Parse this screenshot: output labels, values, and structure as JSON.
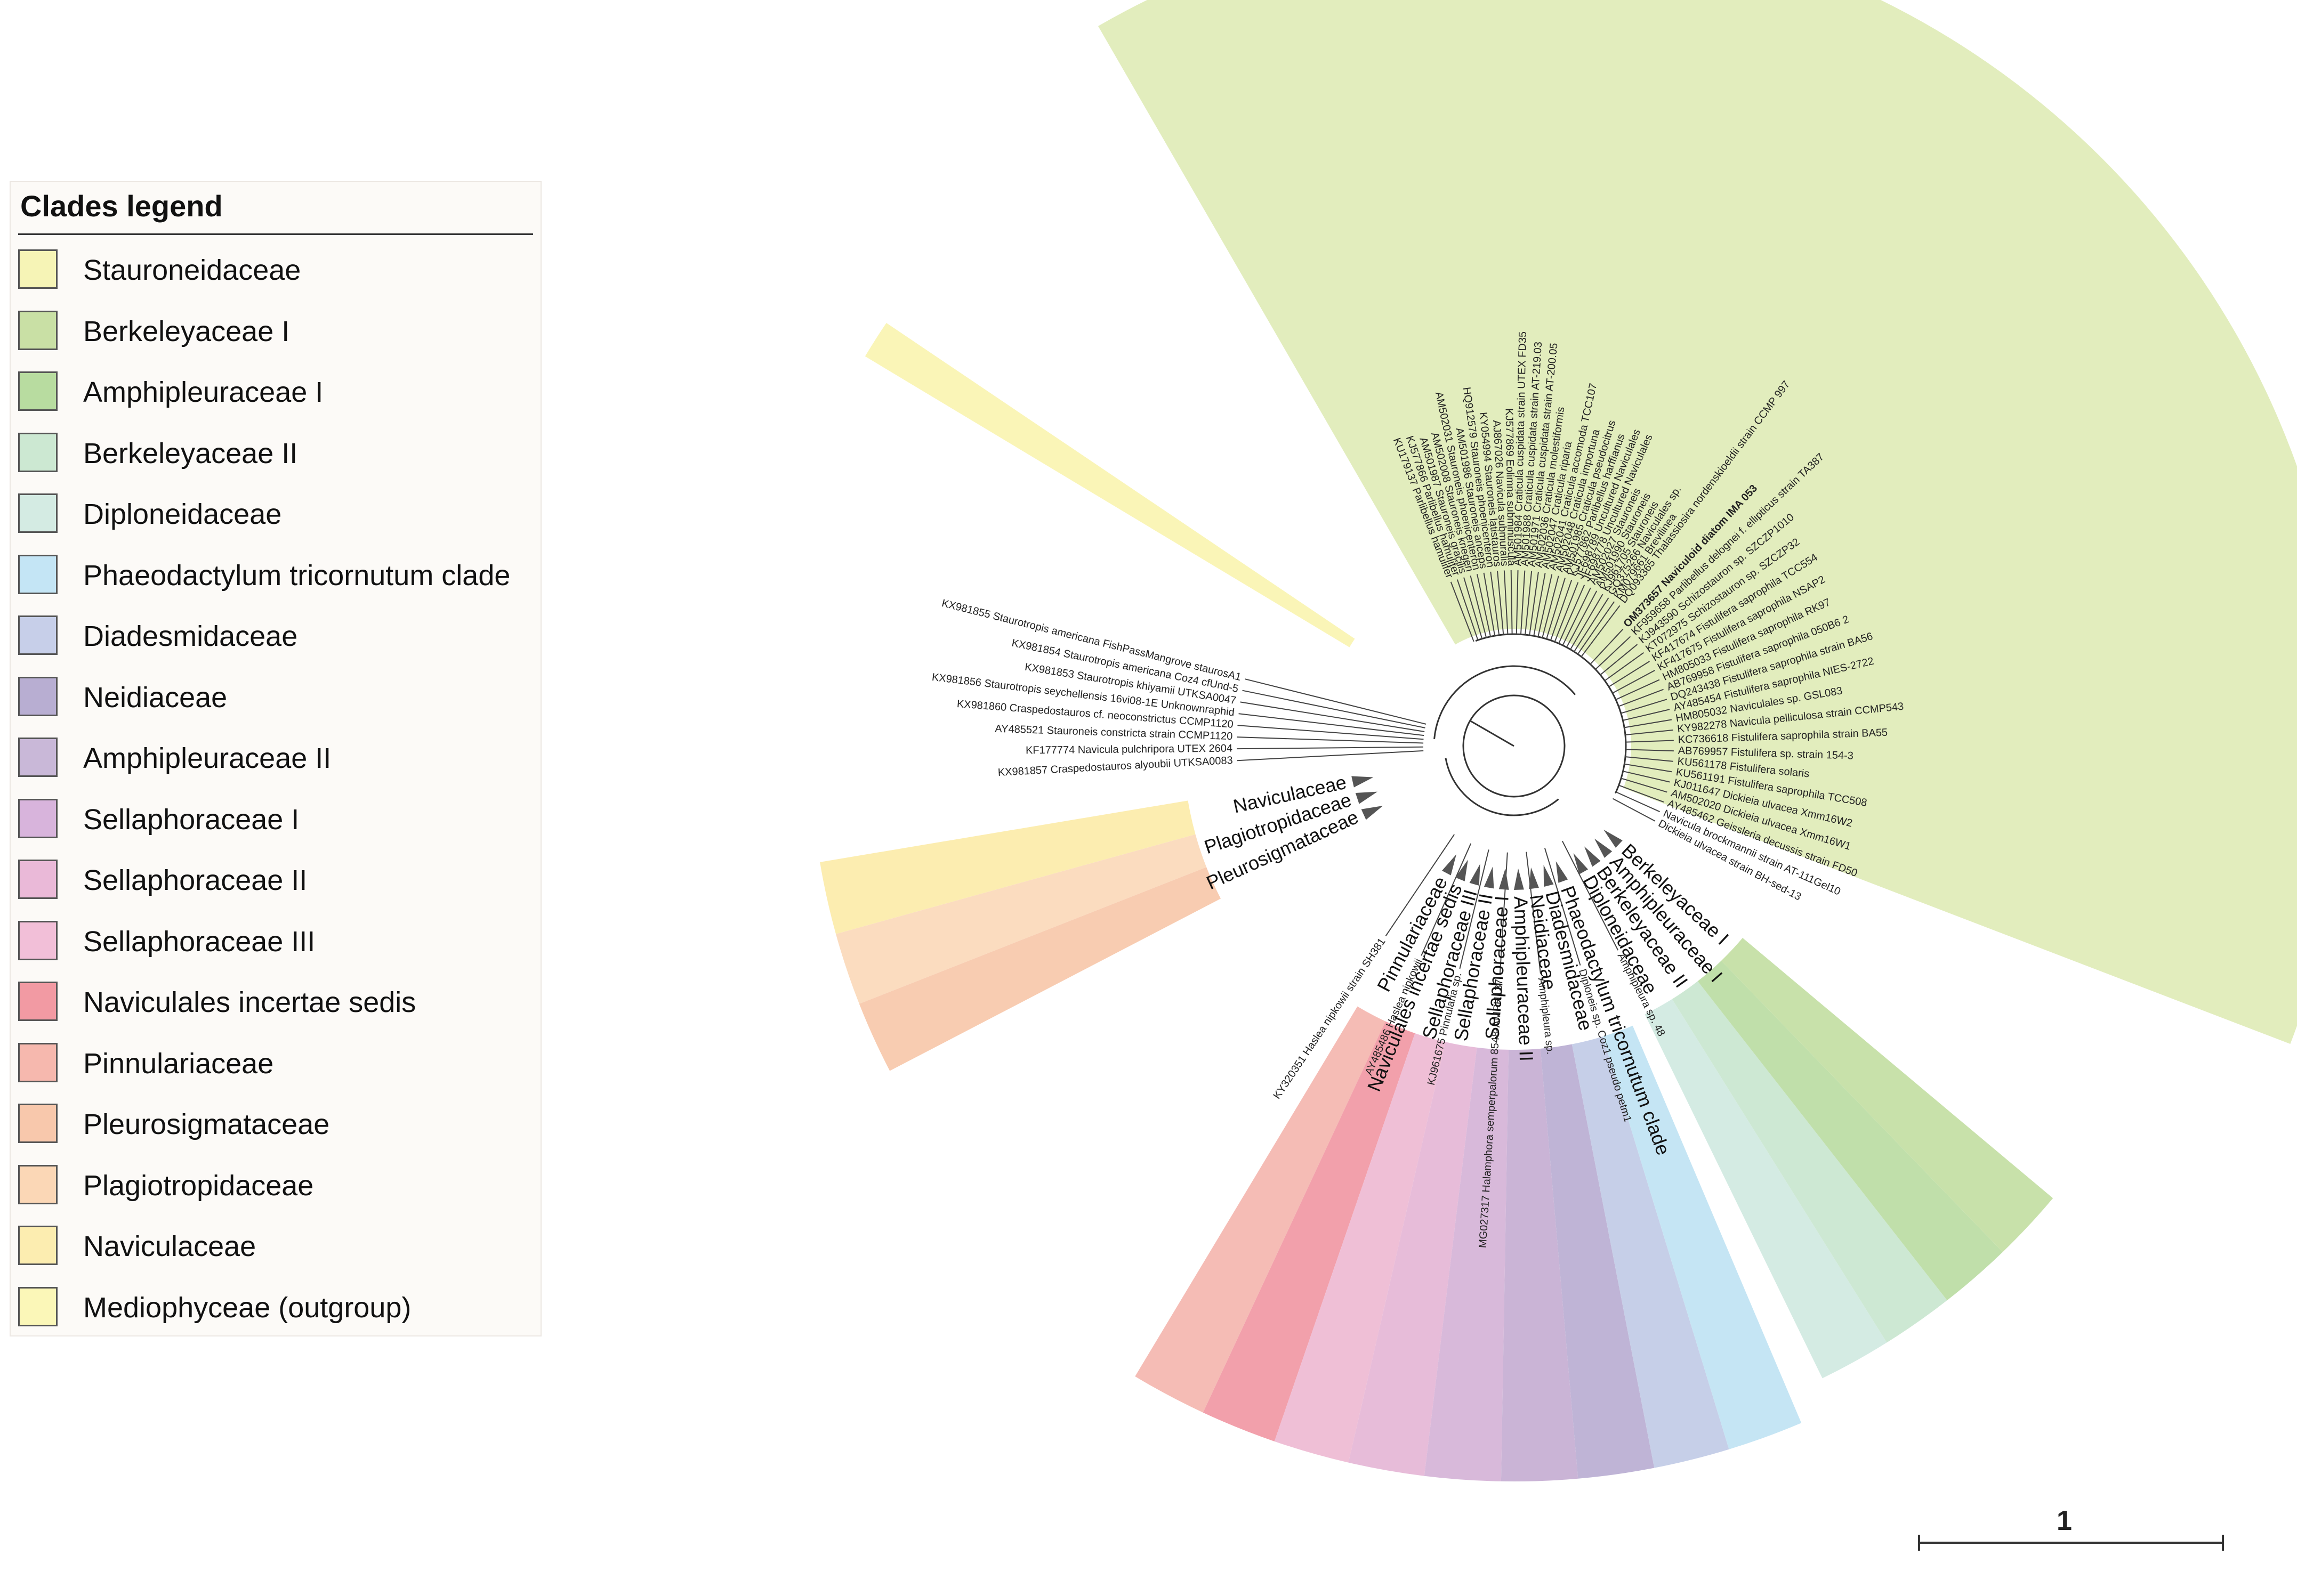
{
  "legend": {
    "title": "Clades legend",
    "items": [
      {
        "label": "Stauroneidaceae",
        "color": "#f6f4b6"
      },
      {
        "label": "Berkeleyaceae I",
        "color": "#c9e0a5"
      },
      {
        "label": "Amphipleuraceae I",
        "color": "#b8dca0"
      },
      {
        "label": "Berkeleyaceae II",
        "color": "#cce8d2"
      },
      {
        "label": "Diploneidaceae",
        "color": "#d4ebe3"
      },
      {
        "label": "Phaeodactylum tricornutum clade",
        "color": "#c4e5f5"
      },
      {
        "label": "Diadesmidaceae",
        "color": "#c7cfe9"
      },
      {
        "label": "Neidiaceae",
        "color": "#b8aed2"
      },
      {
        "label": "Amphipleuraceae II",
        "color": "#c9b8d8"
      },
      {
        "label": "Sellaphoraceae I",
        "color": "#d8b4dc"
      },
      {
        "label": "Sellaphoraceae II",
        "color": "#eab9d8"
      },
      {
        "label": "Sellaphoraceae III",
        "color": "#f2bfd8"
      },
      {
        "label": "Naviculales incertae sedis",
        "color": "#f29aa3"
      },
      {
        "label": "Pinnulariaceae",
        "color": "#f6b8ae"
      },
      {
        "label": "Pleurosigmataceae",
        "color": "#f8c8ac"
      },
      {
        "label": "Plagiotropidaceae",
        "color": "#fbd7b6"
      },
      {
        "label": "Naviculaceae",
        "color": "#fcedb0"
      },
      {
        "label": "Mediophyceae (outgroup)",
        "color": "#fbf7b8"
      }
    ]
  },
  "clades": [
    {
      "id": "stauroneidaceae",
      "color": "#e2edbd",
      "labels": []
    },
    {
      "id": "mediophyceae",
      "color": "#faf5b7",
      "labels": []
    },
    {
      "id": "naviculaceae",
      "color": "#fcedb0",
      "labels": [
        "Naviculaceae"
      ]
    },
    {
      "id": "plagiotropidaceae",
      "color": "#fbdcbf",
      "labels": [
        "Plagiotropidaceae"
      ]
    },
    {
      "id": "pleurosigmataceae",
      "color": "#f8ccb1",
      "labels": [
        "Pleurosigmataceae"
      ]
    },
    {
      "id": "pinnulariaceae",
      "color": "#f5bcb5",
      "labels": [
        "Pinnulariaceae"
      ]
    },
    {
      "id": "naviculales-incertae-sedis",
      "color": "#f2a0ab",
      "labels": [
        "Naviculales incertae sedis"
      ]
    },
    {
      "id": "sellaphoraceae-iii",
      "color": "#efbfd6",
      "labels": [
        "Sellaphoraceae III"
      ]
    },
    {
      "id": "sellaphoraceae-ii",
      "color": "#e7bcd9",
      "labels": [
        "Sellaphoraceae II"
      ]
    },
    {
      "id": "sellaphoraceae-i",
      "color": "#d8b9da",
      "labels": [
        "Sellaphoraceae I"
      ]
    },
    {
      "id": "amphipleuraceae-ii",
      "color": "#cab4d6",
      "labels": [
        "Amphipleuraceae II"
      ]
    },
    {
      "id": "neidiaceae",
      "color": "#bfb4d6",
      "labels": [
        "Neidiaceae"
      ]
    },
    {
      "id": "diadesmidaceae",
      "color": "#c6cfe8",
      "labels": [
        "Diadesmidaceae"
      ]
    },
    {
      "id": "phaeodactylum",
      "color": "#c5e5f4",
      "labels": [
        "Phaeodactylum tricornutum clade"
      ]
    },
    {
      "id": "diploneidaceae",
      "color": "#d4ebe3",
      "labels": [
        "Diploneidaceae"
      ]
    },
    {
      "id": "berkeleyaceae-ii",
      "color": "#cde8d3",
      "labels": [
        "Berkeleyaceae II"
      ]
    },
    {
      "id": "amphipleuraceae-i",
      "color": "#c0dfaa",
      "labels": [
        "Amphipleuraceae I"
      ]
    },
    {
      "id": "berkeleyaceae-i",
      "color": "#c8e1aa",
      "labels": [
        "Berkeleyaceae I"
      ]
    }
  ],
  "leaves_upper": [
    "KU179137 Parlibellus hamulifer",
    "KJ577866 Parlibellus hamulifer",
    "AM501987 Stauroneis gracilis",
    "AM502008 Stauroneis kriegeri",
    "AM502031 Stauroneis phoenicenteron",
    "AM501986 Stauroneis anceps",
    "HQ912579 Stauroneis phoenicenteron",
    "KY054994 Stauroneis latistauros",
    "AJ867026 Navicula submuralis",
    "KJ577869 Eolimna subminuscula",
    "AM501984 Craticula cuspidata strain UTEX FD35",
    "AM501988 Craticula cuspidata strain AT-219.03",
    "AM501971 Craticula cuspidata strain AT-200.05",
    "AM502036 Craticula molestiformis",
    "AM502047 Craticula riparia",
    "AM502041 Craticula accomoda TCC107",
    "AM502048 Craticula importuna",
    "AM501985 Craticula pseudocitrus",
    "KJ577862 Parlibellus harffianus",
    "JF698789 Uncultured Naviculales",
    "JF698778 Uncultured Naviculales",
    "AM502027 Stauroneis",
    "AM501990 Stauroneis",
    "KJ961705 Stauroneis",
    "GQ375266 Naviculales sp.",
    "KM079661 Brevilinea",
    "DQ093365 Thalassiosira nordenskioeldii strain CCMP 997"
  ],
  "leaves_left": [
    "KX981855 Staurotropis americana FishPassMangrove staurosA1",
    "KX981854 Staurotropis americana Coz4 cfUnd-5",
    "KX981853 Staurotropis khiyamii UTKSA0047",
    "KX981856 Staurotropis seychellensis 16vi08-1E Unknownraphid",
    "KX981860 Craspedostauros cf. neoconstrictus CCMP1120",
    "AY485521 Stauroneis constricta strain CCMP1120",
    "KF177774 Navicula pulchripora UTEX 2604",
    "KX981857 Craspedostauros alyoubii UTKSA0083"
  ],
  "leaves_right": [
    "OM373657 Naviculoid diatom IMA 053",
    "KF959658 Parlibellus delognei f. ellipticus strain TA387",
    "KJ943590 Schizostauron sp. SZCZP1010",
    "KT072975 Schizostauron sp. SZCZP32",
    "KF417674 Fistulifera saprophila TCC554",
    "KF417675 Fistulifera saprophila NSAP2",
    "HM805033 Fistulifera saprophila RK97",
    "AB769958 Fistulifera saprophila 050B6 2",
    "DQ243438 Fistulifera saprophila strain BA56",
    "AY485454 Fistulifera saprophila NIES-2722",
    "HM805032 Naviculales sp. GSL083",
    "KY982278 Navicula pelliculosa strain CCMP543",
    "KC736618 Fistulifera saprophila strain BA55",
    "AB769957 Fistulifera sp. strain 154-3",
    "KU561178 Fistulifera solaris",
    "KU561191 Fistulifera saprophila TCC508",
    "KJ011647 Dickieia ulvacea Xmm16W2",
    "AM502020 Dickieia ulvacea Xmm16W1",
    "AY485462 Geissleria decussis strain FD50",
    "Navicula brockmannii strain AT-111Gel10",
    "Dickieia ulvacea strain BH-sed-13"
  ],
  "leaves_lower": [
    "KY320351 Haslea nipkowii strain SH381",
    "AY485486 Haslea nipkowii",
    "KJ961675 Pinnularia sp.",
    "MG027317 Halamphora semperpalorum 8548-AMPH137",
    "Amphipleura sp.",
    "Diploneis sp. Coz1 pseudo petm1",
    "Amphipleura sp. 48"
  ],
  "scale": {
    "label": "1"
  }
}
